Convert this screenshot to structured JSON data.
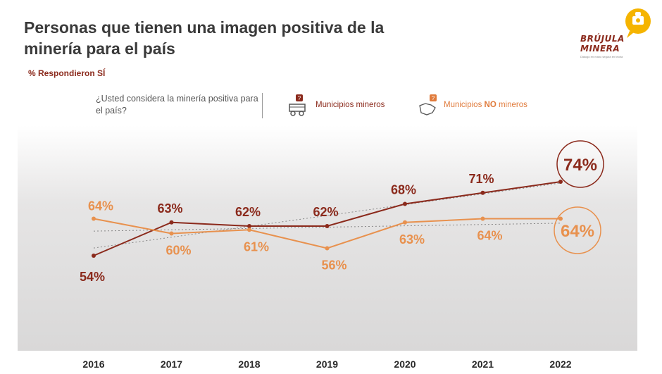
{
  "header": {
    "title": "Personas que tienen una imagen positiva de la minería para el país",
    "subtitle": "% Respondieron SÍ"
  },
  "legend": {
    "question": "¿Usted considera la minería positiva para el país?",
    "mining_label": "Municipios mineros",
    "nonmining_prefix": "Municipios ",
    "nonmining_emphasis": "NO",
    "nonmining_suffix": " mineros",
    "mining_icon": "mining-truck-icon",
    "nonmining_icon": "map-region-icon"
  },
  "logo": {
    "line1": "BRÚJULA",
    "line2": "MINERA",
    "tagline": "Diálogo en mano segura en teoria"
  },
  "colors": {
    "mining": "#8b2a1c",
    "nonmining": "#e8914e",
    "trend": "#888888"
  },
  "chart_data": {
    "type": "line",
    "categories": [
      "2016",
      "2017",
      "2018",
      "2019",
      "2020",
      "2021",
      "2022"
    ],
    "series": [
      {
        "name": "Municipios mineros",
        "values": [
          54,
          63,
          62,
          62,
          68,
          71,
          74
        ],
        "labels": [
          "54%",
          "63%",
          "62%",
          "62%",
          "68%",
          "71%",
          "74%"
        ]
      },
      {
        "name": "Municipios NO mineros",
        "values": [
          64,
          60,
          61,
          56,
          63,
          64,
          64
        ],
        "labels": [
          "64%",
          "60%",
          "61%",
          "56%",
          "63%",
          "64%",
          "64%"
        ]
      }
    ],
    "trendlines": true,
    "highlight_last_point": true,
    "grid": false
  }
}
